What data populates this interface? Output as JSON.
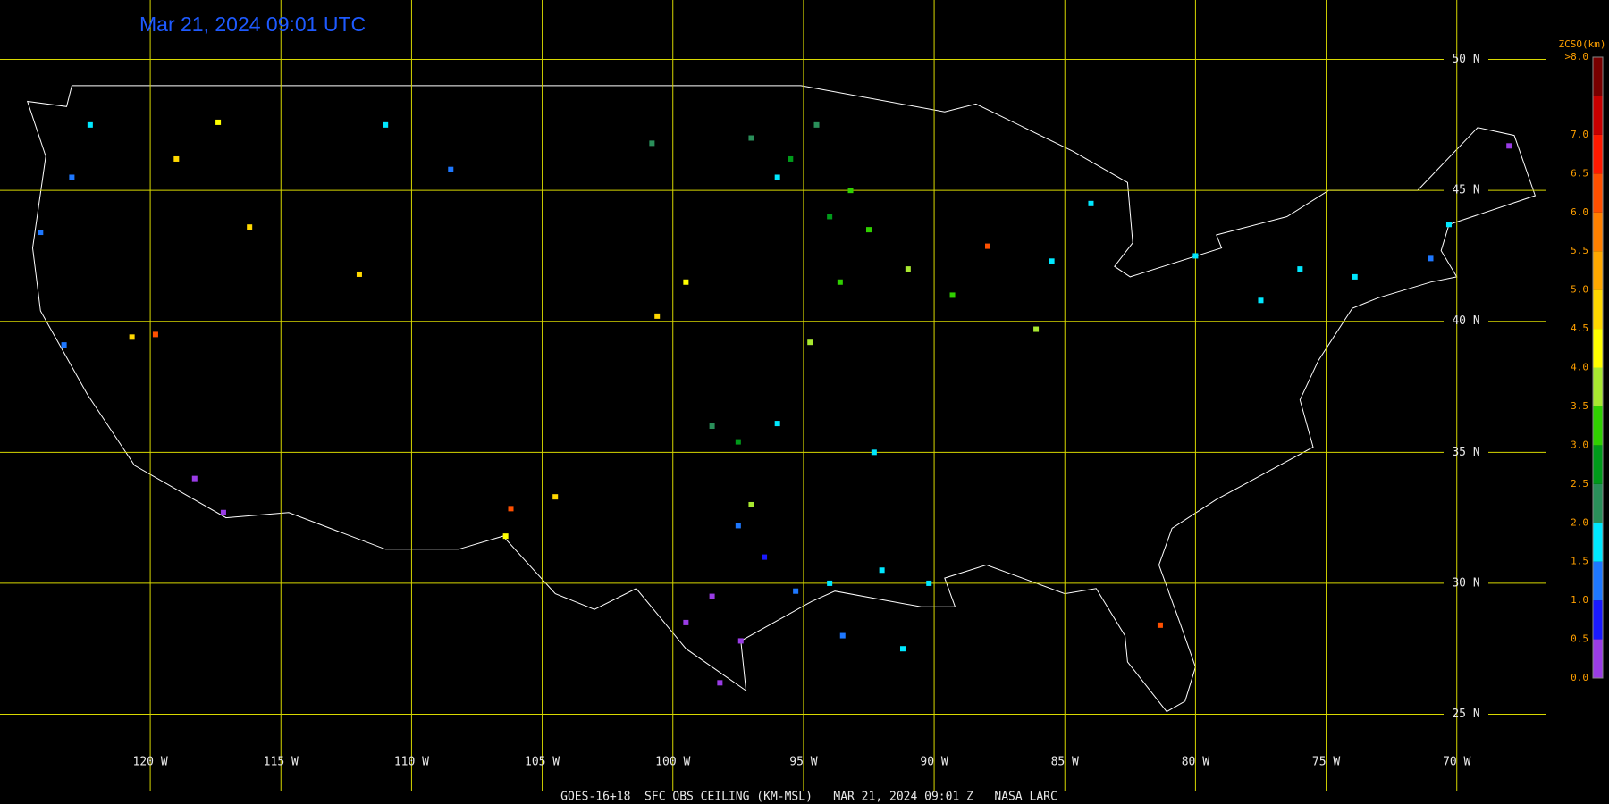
{
  "timestamp": "Mar 21, 2024 09:01 UTC",
  "footer": "GOES-16+18  SFC OBS CEILING (KM-MSL)   MAR 21, 2024 09:01 Z   NASA LARC",
  "map": {
    "xlim": [
      -125.75,
      -66.57
    ],
    "ylim": [
      22.05,
      52.27
    ],
    "xticks": [
      {
        "value": -120,
        "label": "120 W"
      },
      {
        "value": -115,
        "label": "115 W"
      },
      {
        "value": -110,
        "label": "110 W"
      },
      {
        "value": -105,
        "label": "105 W"
      },
      {
        "value": -100,
        "label": "100 W"
      },
      {
        "value": -95,
        "label": "95 W"
      },
      {
        "value": -90,
        "label": "90 W"
      },
      {
        "value": -85,
        "label": "85 W"
      },
      {
        "value": -80,
        "label": "80 W"
      },
      {
        "value": -75,
        "label": "75 W"
      },
      {
        "value": -70,
        "label": "70 W"
      }
    ],
    "yticks": [
      {
        "value": 50,
        "label": "50 N"
      },
      {
        "value": 45,
        "label": "45 N"
      },
      {
        "value": 40,
        "label": "40 N"
      },
      {
        "value": 35,
        "label": "35 N"
      },
      {
        "value": 30,
        "label": "30 N"
      },
      {
        "value": 25,
        "label": "25 N"
      }
    ],
    "grid_color": "#d8d800"
  },
  "colorbar": {
    "title": "ZCSO(km)",
    "bounds": [
      0,
      0.5,
      1,
      1.5,
      2,
      2.5,
      3,
      3.5,
      4,
      4.5,
      5,
      5.5,
      6,
      6.5,
      7,
      7.5,
      8
    ],
    "colors": [
      "#9a3ce6",
      "#1a1aff",
      "#1e78ff",
      "#00e8ff",
      "#2a8f5a",
      "#009a1a",
      "#30d000",
      "#a8e830",
      "#ffff00",
      "#ffd800",
      "#ffa800",
      "#ff8000",
      "#ff5000",
      "#ff1a00",
      "#c80000",
      "#780000"
    ],
    "ticks": [
      {
        "value": 0,
        "label": "0.0"
      },
      {
        "value": 0.5,
        "label": "0.5"
      },
      {
        "value": 1,
        "label": "1.0"
      },
      {
        "value": 1.5,
        "label": "1.5"
      },
      {
        "value": 2,
        "label": "2.0"
      },
      {
        "value": 2.5,
        "label": "2.5"
      },
      {
        "value": 3,
        "label": "3.0"
      },
      {
        "value": 3.5,
        "label": "3.5"
      },
      {
        "value": 4,
        "label": "4.0"
      },
      {
        "value": 4.5,
        "label": "4.5"
      },
      {
        "value": 5,
        "label": "5.0"
      },
      {
        "value": 5.5,
        "label": "5.5"
      },
      {
        "value": 6,
        "label": "6.0"
      },
      {
        "value": 6.5,
        "label": "6.5"
      },
      {
        "value": 7,
        "label": "7.0"
      },
      {
        "value": 8,
        "label": ">8.0"
      }
    ],
    "label_color": "#ffa000"
  },
  "stations": [
    {
      "lon": -122.3,
      "lat": 47.5,
      "ceiling": 1.6
    },
    {
      "lon": -123.0,
      "lat": 45.5,
      "ceiling": 1.3
    },
    {
      "lon": -124.2,
      "lat": 43.4,
      "ceiling": 1.2
    },
    {
      "lon": -117.4,
      "lat": 47.6,
      "ceiling": 4.2
    },
    {
      "lon": -116.2,
      "lat": 43.6,
      "ceiling": 4.6
    },
    {
      "lon": -119.0,
      "lat": 46.2,
      "ceiling": 4.8
    },
    {
      "lon": -112.0,
      "lat": 41.8,
      "ceiling": 4.8
    },
    {
      "lon": -123.3,
      "lat": 39.1,
      "ceiling": 1.2
    },
    {
      "lon": -118.3,
      "lat": 34.0,
      "ceiling": 0.4
    },
    {
      "lon": -117.2,
      "lat": 32.7,
      "ceiling": 0.3
    },
    {
      "lon": -119.8,
      "lat": 39.5,
      "ceiling": 6.0
    },
    {
      "lon": -120.7,
      "lat": 39.4,
      "ceiling": 4.6
    },
    {
      "lon": -108.5,
      "lat": 45.8,
      "ceiling": 1.4
    },
    {
      "lon": -111.0,
      "lat": 47.5,
      "ceiling": 1.5
    },
    {
      "lon": -97.0,
      "lat": 47.0,
      "ceiling": 2.3
    },
    {
      "lon": -100.8,
      "lat": 46.8,
      "ceiling": 2.0
    },
    {
      "lon": -93.2,
      "lat": 45.0,
      "ceiling": 3.2
    },
    {
      "lon": -94.0,
      "lat": 44.0,
      "ceiling": 2.6
    },
    {
      "lon": -96.0,
      "lat": 45.5,
      "ceiling": 1.7
    },
    {
      "lon": -92.5,
      "lat": 43.5,
      "ceiling": 3.0
    },
    {
      "lon": -93.6,
      "lat": 41.5,
      "ceiling": 3.3
    },
    {
      "lon": -91.0,
      "lat": 42.0,
      "ceiling": 3.6
    },
    {
      "lon": -87.95,
      "lat": 42.87,
      "ceiling": 6.0
    },
    {
      "lon": -84.0,
      "lat": 44.5,
      "ceiling": 1.8
    },
    {
      "lon": -85.5,
      "lat": 42.3,
      "ceiling": 1.5
    },
    {
      "lon": -76.0,
      "lat": 42.0,
      "ceiling": 1.8
    },
    {
      "lon": -77.5,
      "lat": 40.8,
      "ceiling": 1.7
    },
    {
      "lon": -80.0,
      "lat": 42.5,
      "ceiling": 1.6
    },
    {
      "lon": -71.0,
      "lat": 42.4,
      "ceiling": 1.3
    },
    {
      "lon": -70.3,
      "lat": 43.7,
      "ceiling": 1.6
    },
    {
      "lon": -68.0,
      "lat": 46.7,
      "ceiling": 0.4
    },
    {
      "lon": -86.1,
      "lat": 39.7,
      "ceiling": 3.8
    },
    {
      "lon": -81.35,
      "lat": 28.4,
      "ceiling": 6.0
    },
    {
      "lon": -97.5,
      "lat": 35.4,
      "ceiling": 2.6
    },
    {
      "lon": -98.5,
      "lat": 36.0,
      "ceiling": 2.2
    },
    {
      "lon": -96.0,
      "lat": 36.1,
      "ceiling": 1.8
    },
    {
      "lon": -97.0,
      "lat": 33.0,
      "ceiling": 3.6
    },
    {
      "lon": -97.5,
      "lat": 32.2,
      "ceiling": 1.1
    },
    {
      "lon": -96.5,
      "lat": 31.0,
      "ceiling": 0.8
    },
    {
      "lon": -98.5,
      "lat": 29.5,
      "ceiling": 0.4
    },
    {
      "lon": -97.4,
      "lat": 27.8,
      "ceiling": 0.4
    },
    {
      "lon": -95.3,
      "lat": 29.7,
      "ceiling": 1.4
    },
    {
      "lon": -94.0,
      "lat": 30.0,
      "ceiling": 1.7
    },
    {
      "lon": -99.5,
      "lat": 28.5,
      "ceiling": 0.4
    },
    {
      "lon": -98.2,
      "lat": 26.2,
      "ceiling": 0.3
    },
    {
      "lon": -106.2,
      "lat": 32.85,
      "ceiling": 6.0
    },
    {
      "lon": -104.5,
      "lat": 33.3,
      "ceiling": 4.6
    },
    {
      "lon": -106.4,
      "lat": 31.8,
      "ceiling": 4.2
    },
    {
      "lon": -92.0,
      "lat": 30.5,
      "ceiling": 1.7
    },
    {
      "lon": -90.2,
      "lat": 30.0,
      "ceiling": 1.8
    },
    {
      "lon": -93.5,
      "lat": 28.0,
      "ceiling": 1.0
    },
    {
      "lon": -91.2,
      "lat": 27.5,
      "ceiling": 1.5
    },
    {
      "lon": -94.5,
      "lat": 47.5,
      "ceiling": 2.0
    },
    {
      "lon": -94.75,
      "lat": 39.2,
      "ceiling": 3.6
    },
    {
      "lon": -92.3,
      "lat": 35.0,
      "ceiling": 1.6
    },
    {
      "lon": -100.6,
      "lat": 40.2,
      "ceiling": 4.6
    },
    {
      "lon": -99.5,
      "lat": 41.5,
      "ceiling": 4.0
    },
    {
      "lon": -89.3,
      "lat": 41.0,
      "ceiling": 3.4
    },
    {
      "lon": -95.5,
      "lat": 46.2,
      "ceiling": 2.8
    },
    {
      "lon": -73.9,
      "lat": 41.7,
      "ceiling": 1.8
    }
  ]
}
